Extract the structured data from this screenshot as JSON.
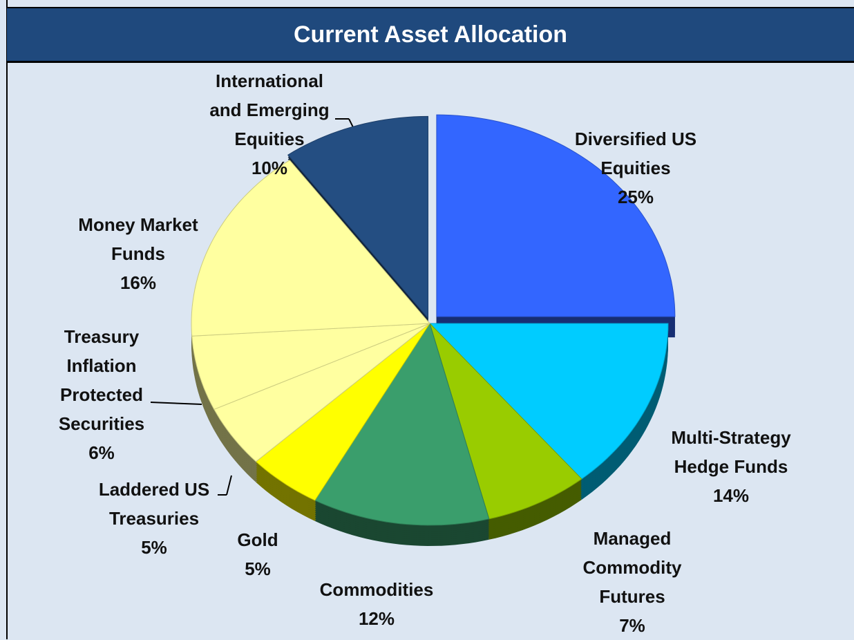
{
  "chart_data": {
    "type": "pie",
    "title": "Current Asset Allocation",
    "categories": [
      "Diversified US Equities",
      "Multi-Strategy Hedge Funds",
      "Managed Commodity Futures",
      "Commodities",
      "Gold",
      "Laddered US Treasuries",
      "Treasury Inflation Protected Securities",
      "Money Market Funds",
      "International and Emerging Equities"
    ],
    "values": [
      25,
      14,
      7,
      12,
      5,
      5,
      6,
      16,
      10
    ],
    "value_labels": [
      "25%",
      "14%",
      "7%",
      "12%",
      "5%",
      "5%",
      "6%",
      "16%",
      "10%"
    ],
    "colors": [
      "#3366ff",
      "#00ccff",
      "#99cc00",
      "#3a9e6c",
      "#ffff00",
      "#ffffa0",
      "#ffffa0",
      "#ffffa0",
      "#244e82"
    ]
  }
}
